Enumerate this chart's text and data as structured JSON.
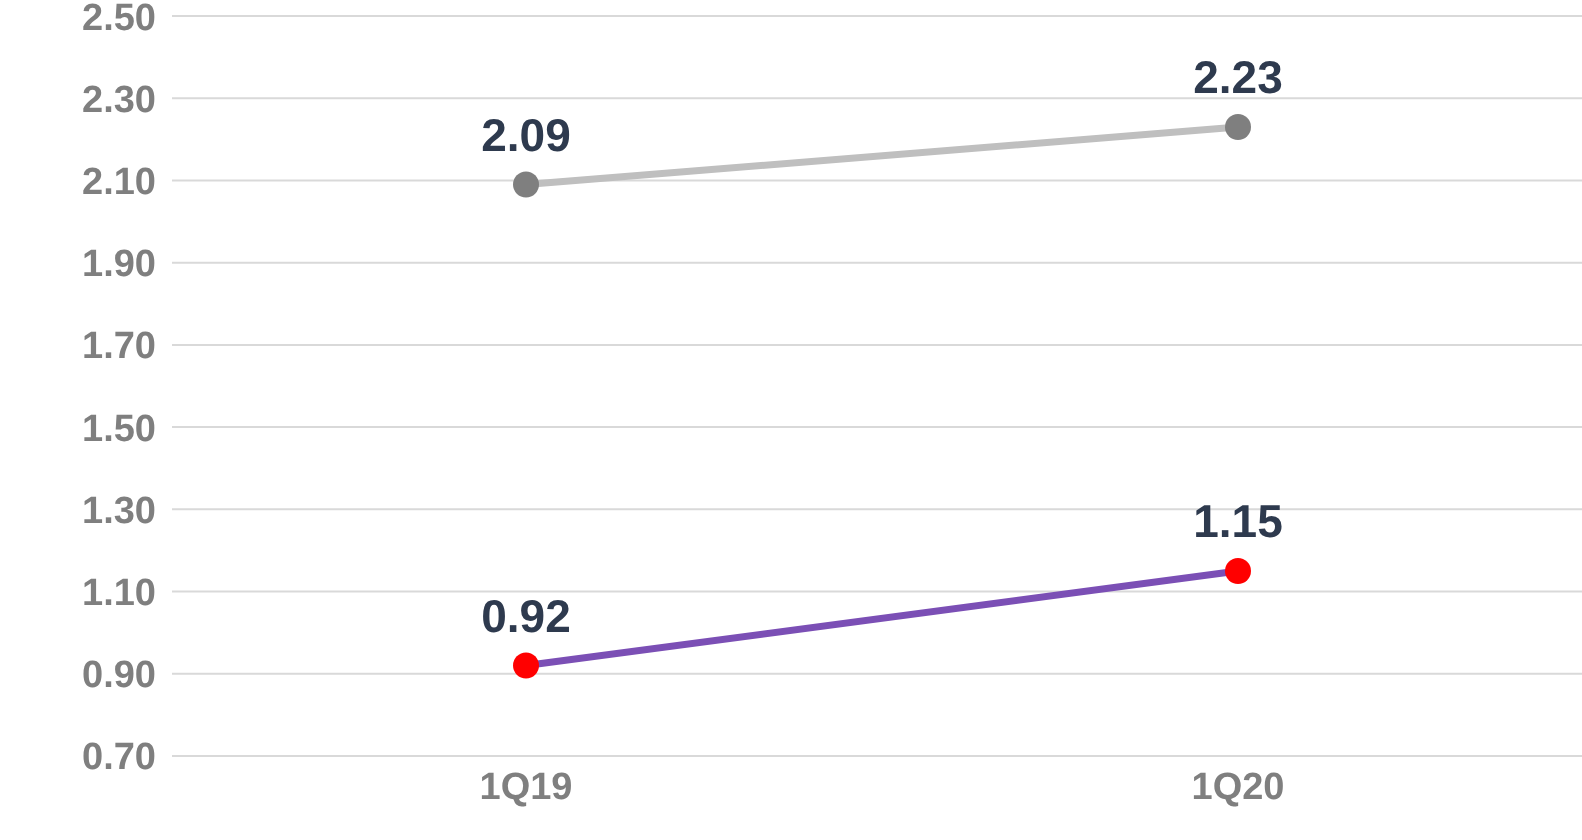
{
  "chart_data": {
    "type": "line",
    "categories": [
      "1Q19",
      "1Q20"
    ],
    "series": [
      {
        "color": "#bfbfbf",
        "colors": [
          "#7f7f7f",
          "#7f7f7f"
        ],
        "values": [
          2.09,
          2.23
        ]
      },
      {
        "color": "#7b4fb5",
        "colors": [
          "#ff0000",
          "#ff0000"
        ],
        "values": [
          0.92,
          1.15
        ]
      }
    ],
    "ylim": [
      0.7,
      2.5
    ],
    "yticks": [
      {
        "value": 0.7,
        "label": "0.70"
      },
      {
        "value": 0.9,
        "label": "0.90"
      },
      {
        "value": 1.1,
        "label": "1.10"
      },
      {
        "value": 1.3,
        "label": "1.30"
      },
      {
        "value": 1.5,
        "label": "1.50"
      },
      {
        "value": 1.7,
        "label": "1.70"
      },
      {
        "value": 1.9,
        "label": "1.90"
      },
      {
        "value": 2.1,
        "label": "2.10"
      },
      {
        "value": 2.3,
        "label": "2.30"
      },
      {
        "value": 2.5,
        "label": "2.50"
      }
    ],
    "grid": "y",
    "marker": "circle",
    "line_style": "solid",
    "data_labels": true
  }
}
